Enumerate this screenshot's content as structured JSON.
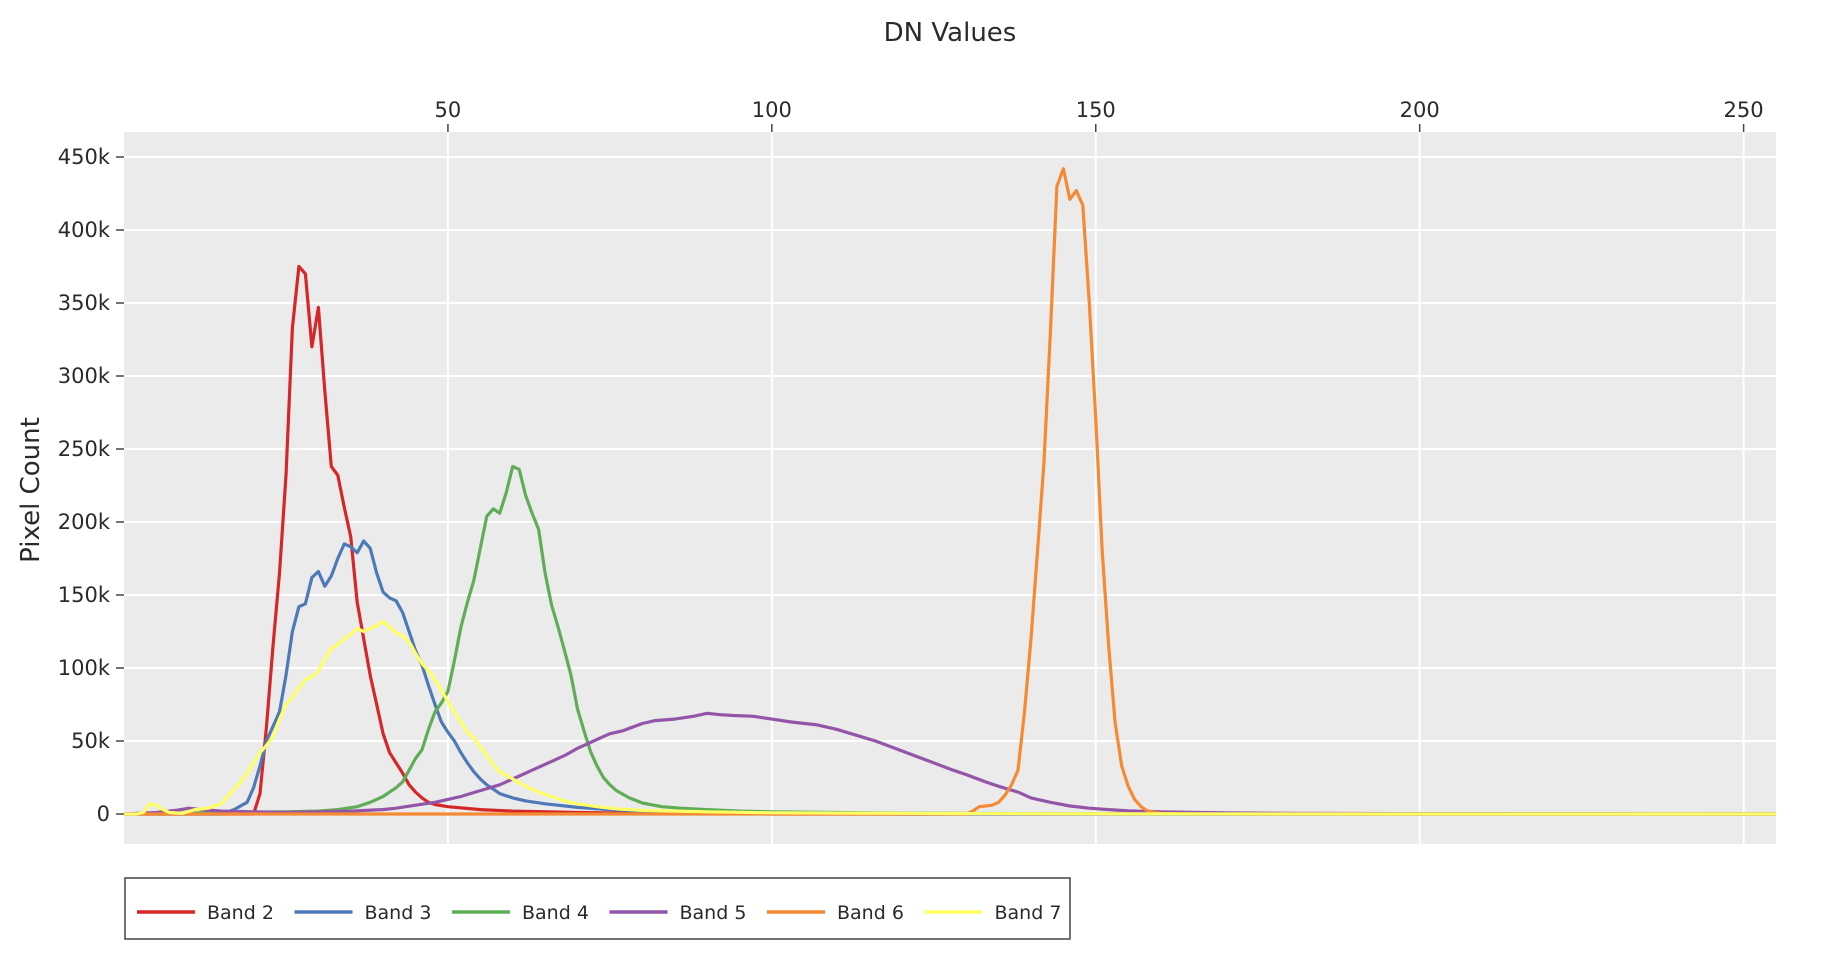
{
  "chart_data": {
    "type": "line",
    "title": "",
    "xlabel": "DN Values",
    "ylabel": "Pixel Count",
    "x_axis_position": "top",
    "xlim": [
      0,
      255
    ],
    "ylim": [
      -25000,
      450000
    ],
    "x_ticks": [
      50,
      100,
      150,
      200,
      250
    ],
    "x_tick_labels": [
      "50",
      "100",
      "150",
      "200",
      "250"
    ],
    "y_ticks": [
      0,
      50000,
      100000,
      150000,
      200000,
      250000,
      300000,
      350000,
      400000,
      450000
    ],
    "y_tick_labels": [
      "0",
      "50k",
      "100k",
      "150k",
      "200k",
      "250k",
      "300k",
      "350k",
      "400k",
      "450k"
    ],
    "grid": true,
    "plot_background": "#ebebeb",
    "legend_position": "bottom-left",
    "series": [
      {
        "name": "Band 2",
        "color": "#d62728",
        "points": [
          [
            0,
            0
          ],
          [
            20,
            0
          ],
          [
            21,
            14000
          ],
          [
            22,
            60000
          ],
          [
            23,
            115000
          ],
          [
            24,
            165000
          ],
          [
            25,
            232000
          ],
          [
            26,
            333000
          ],
          [
            27,
            375000
          ],
          [
            28,
            370000
          ],
          [
            29,
            320000
          ],
          [
            30,
            347000
          ],
          [
            31,
            290000
          ],
          [
            32,
            238000
          ],
          [
            33,
            232000
          ],
          [
            34,
            210000
          ],
          [
            35,
            190000
          ],
          [
            36,
            145000
          ],
          [
            37,
            120000
          ],
          [
            38,
            95000
          ],
          [
            39,
            75000
          ],
          [
            40,
            55000
          ],
          [
            41,
            42000
          ],
          [
            42,
            35000
          ],
          [
            43,
            28000
          ],
          [
            44,
            20000
          ],
          [
            45,
            15000
          ],
          [
            46,
            11000
          ],
          [
            47,
            8000
          ],
          [
            48,
            6500
          ],
          [
            50,
            5000
          ],
          [
            55,
            3000
          ],
          [
            60,
            2000
          ],
          [
            70,
            1000
          ],
          [
            80,
            500
          ],
          [
            100,
            0
          ],
          [
            255,
            0
          ]
        ]
      },
      {
        "name": "Band 3",
        "color": "#4e79b7",
        "points": [
          [
            0,
            0
          ],
          [
            15,
            0
          ],
          [
            17,
            3000
          ],
          [
            19,
            8000
          ],
          [
            20,
            18000
          ],
          [
            21,
            33000
          ],
          [
            22,
            50000
          ],
          [
            23,
            60000
          ],
          [
            24,
            70000
          ],
          [
            25,
            95000
          ],
          [
            26,
            125000
          ],
          [
            27,
            142000
          ],
          [
            28,
            144000
          ],
          [
            29,
            162000
          ],
          [
            30,
            166000
          ],
          [
            31,
            156000
          ],
          [
            32,
            163000
          ],
          [
            33,
            175000
          ],
          [
            34,
            185000
          ],
          [
            35,
            183000
          ],
          [
            36,
            179000
          ],
          [
            37,
            187000
          ],
          [
            38,
            182000
          ],
          [
            39,
            165000
          ],
          [
            40,
            152000
          ],
          [
            41,
            148000
          ],
          [
            42,
            146000
          ],
          [
            43,
            138000
          ],
          [
            44,
            125000
          ],
          [
            45,
            112000
          ],
          [
            46,
            102000
          ],
          [
            47,
            88000
          ],
          [
            48,
            75000
          ],
          [
            49,
            63000
          ],
          [
            50,
            56000
          ],
          [
            51,
            50000
          ],
          [
            52,
            42000
          ],
          [
            53,
            35000
          ],
          [
            54,
            29000
          ],
          [
            55,
            24000
          ],
          [
            56,
            20000
          ],
          [
            57,
            17000
          ],
          [
            58,
            14000
          ],
          [
            60,
            11000
          ],
          [
            62,
            9000
          ],
          [
            65,
            7000
          ],
          [
            70,
            4500
          ],
          [
            75,
            3000
          ],
          [
            80,
            2000
          ],
          [
            90,
            1000
          ],
          [
            100,
            500
          ],
          [
            120,
            0
          ],
          [
            255,
            0
          ]
        ]
      },
      {
        "name": "Band 4",
        "color": "#5fad56",
        "points": [
          [
            0,
            0
          ],
          [
            15,
            1000
          ],
          [
            25,
            1500
          ],
          [
            30,
            2000
          ],
          [
            33,
            3000
          ],
          [
            36,
            5000
          ],
          [
            38,
            8000
          ],
          [
            40,
            12000
          ],
          [
            42,
            18000
          ],
          [
            43,
            22000
          ],
          [
            44,
            30000
          ],
          [
            45,
            38000
          ],
          [
            46,
            44000
          ],
          [
            47,
            58000
          ],
          [
            48,
            70000
          ],
          [
            49,
            76000
          ],
          [
            50,
            84000
          ],
          [
            51,
            105000
          ],
          [
            52,
            128000
          ],
          [
            53,
            145000
          ],
          [
            54,
            160000
          ],
          [
            55,
            182000
          ],
          [
            56,
            204000
          ],
          [
            57,
            209000
          ],
          [
            58,
            206000
          ],
          [
            59,
            220000
          ],
          [
            60,
            238000
          ],
          [
            61,
            236000
          ],
          [
            62,
            218000
          ],
          [
            63,
            206000
          ],
          [
            64,
            195000
          ],
          [
            65,
            165000
          ],
          [
            66,
            143000
          ],
          [
            67,
            128000
          ],
          [
            68,
            112000
          ],
          [
            69,
            95000
          ],
          [
            70,
            72000
          ],
          [
            71,
            57000
          ],
          [
            72,
            43000
          ],
          [
            73,
            33000
          ],
          [
            74,
            25000
          ],
          [
            75,
            20000
          ],
          [
            76,
            16000
          ],
          [
            78,
            11000
          ],
          [
            80,
            7500
          ],
          [
            83,
            5000
          ],
          [
            86,
            4000
          ],
          [
            90,
            3000
          ],
          [
            95,
            2000
          ],
          [
            100,
            1500
          ],
          [
            110,
            1000
          ],
          [
            120,
            600
          ],
          [
            140,
            300
          ],
          [
            160,
            0
          ],
          [
            255,
            0
          ]
        ]
      },
      {
        "name": "Band 5",
        "color": "#9355a8",
        "points": [
          [
            0,
            0
          ],
          [
            5,
            1000
          ],
          [
            8,
            2500
          ],
          [
            10,
            4000
          ],
          [
            12,
            3000
          ],
          [
            15,
            2000
          ],
          [
            20,
            1500
          ],
          [
            25,
            1000
          ],
          [
            30,
            1500
          ],
          [
            35,
            2000
          ],
          [
            40,
            3000
          ],
          [
            42,
            4000
          ],
          [
            45,
            6000
          ],
          [
            48,
            8000
          ],
          [
            50,
            10000
          ],
          [
            52,
            12000
          ],
          [
            55,
            16000
          ],
          [
            58,
            20000
          ],
          [
            60,
            24000
          ],
          [
            63,
            30000
          ],
          [
            66,
            36000
          ],
          [
            68,
            40000
          ],
          [
            70,
            45000
          ],
          [
            72,
            49000
          ],
          [
            74,
            53000
          ],
          [
            75,
            55000
          ],
          [
            77,
            57000
          ],
          [
            80,
            62000
          ],
          [
            82,
            64000
          ],
          [
            85,
            65000
          ],
          [
            88,
            67000
          ],
          [
            90,
            69000
          ],
          [
            92,
            68000
          ],
          [
            94,
            67500
          ],
          [
            97,
            67000
          ],
          [
            100,
            65000
          ],
          [
            103,
            63000
          ],
          [
            107,
            61000
          ],
          [
            110,
            58000
          ],
          [
            113,
            54000
          ],
          [
            116,
            50000
          ],
          [
            119,
            45000
          ],
          [
            122,
            40000
          ],
          [
            125,
            35000
          ],
          [
            128,
            30000
          ],
          [
            130,
            27000
          ],
          [
            133,
            22000
          ],
          [
            135,
            19000
          ],
          [
            138,
            15000
          ],
          [
            140,
            11000
          ],
          [
            143,
            8000
          ],
          [
            146,
            5500
          ],
          [
            149,
            4000
          ],
          [
            152,
            3000
          ],
          [
            155,
            2200
          ],
          [
            160,
            1500
          ],
          [
            170,
            800
          ],
          [
            180,
            400
          ],
          [
            200,
            200
          ],
          [
            230,
            100
          ],
          [
            255,
            0
          ]
        ]
      },
      {
        "name": "Band 6",
        "color": "#f58a34",
        "points": [
          [
            0,
            0
          ],
          [
            120,
            0
          ],
          [
            130,
            0
          ],
          [
            131,
            2000
          ],
          [
            132,
            5000
          ],
          [
            133,
            5500
          ],
          [
            134,
            6000
          ],
          [
            135,
            8000
          ],
          [
            136,
            13000
          ],
          [
            137,
            20000
          ],
          [
            138,
            30000
          ],
          [
            139,
            70000
          ],
          [
            140,
            120000
          ],
          [
            141,
            180000
          ],
          [
            142,
            240000
          ],
          [
            143,
            330000
          ],
          [
            144,
            430000
          ],
          [
            145,
            442000
          ],
          [
            146,
            421000
          ],
          [
            147,
            427000
          ],
          [
            148,
            417000
          ],
          [
            149,
            350000
          ],
          [
            150,
            270000
          ],
          [
            151,
            180000
          ],
          [
            152,
            115000
          ],
          [
            153,
            62000
          ],
          [
            154,
            33000
          ],
          [
            155,
            19000
          ],
          [
            156,
            10000
          ],
          [
            157,
            5000
          ],
          [
            158,
            2000
          ],
          [
            160,
            500
          ],
          [
            165,
            0
          ],
          [
            255,
            0
          ]
        ]
      },
      {
        "name": "Band 7",
        "color": "#ffff66",
        "points": [
          [
            0,
            0
          ],
          [
            2,
            0
          ],
          [
            3,
            1000
          ],
          [
            4,
            7000
          ],
          [
            5,
            6000
          ],
          [
            6,
            3000
          ],
          [
            7,
            1000
          ],
          [
            9,
            500
          ],
          [
            11,
            3000
          ],
          [
            13,
            4000
          ],
          [
            15,
            7000
          ],
          [
            16,
            12000
          ],
          [
            17,
            17000
          ],
          [
            18,
            22000
          ],
          [
            19,
            28000
          ],
          [
            20,
            35000
          ],
          [
            21,
            42000
          ],
          [
            22,
            47000
          ],
          [
            23,
            53000
          ],
          [
            24,
            65000
          ],
          [
            25,
            75000
          ],
          [
            26,
            80000
          ],
          [
            27,
            86000
          ],
          [
            28,
            92000
          ],
          [
            29,
            94000
          ],
          [
            30,
            98000
          ],
          [
            31,
            106000
          ],
          [
            32,
            113000
          ],
          [
            33,
            116000
          ],
          [
            34,
            120000
          ],
          [
            35,
            123000
          ],
          [
            36,
            127000
          ],
          [
            37,
            125000
          ],
          [
            38,
            127000
          ],
          [
            39,
            129000
          ],
          [
            40,
            132000
          ],
          [
            41,
            128000
          ],
          [
            42,
            124000
          ],
          [
            43,
            122000
          ],
          [
            44,
            118000
          ],
          [
            45,
            110000
          ],
          [
            46,
            103000
          ],
          [
            47,
            98000
          ],
          [
            48,
            92000
          ],
          [
            49,
            85000
          ],
          [
            50,
            77000
          ],
          [
            51,
            70000
          ],
          [
            52,
            63000
          ],
          [
            53,
            56000
          ],
          [
            54,
            52000
          ],
          [
            55,
            46000
          ],
          [
            56,
            40000
          ],
          [
            57,
            34000
          ],
          [
            58,
            29000
          ],
          [
            60,
            24000
          ],
          [
            62,
            19000
          ],
          [
            64,
            15000
          ],
          [
            66,
            12000
          ],
          [
            68,
            9000
          ],
          [
            70,
            7000
          ],
          [
            73,
            5000
          ],
          [
            76,
            3500
          ],
          [
            80,
            2500
          ],
          [
            90,
            1500
          ],
          [
            100,
            800
          ],
          [
            130,
            300
          ],
          [
            160,
            100
          ],
          [
            200,
            0
          ],
          [
            255,
            0
          ]
        ]
      }
    ]
  }
}
